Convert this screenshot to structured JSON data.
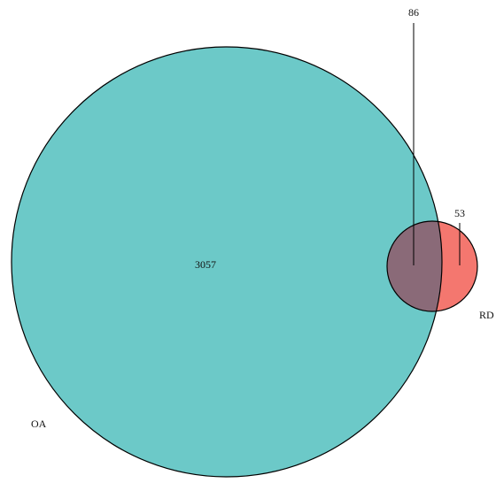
{
  "chart_data": {
    "type": "venn",
    "sets": [
      {
        "name": "OA",
        "color": "#6cc9c8"
      },
      {
        "name": "RD",
        "color": "#f4776f"
      }
    ],
    "overlap_color": "#8a6a78",
    "values": [
      3057,
      86,
      53
    ]
  }
}
